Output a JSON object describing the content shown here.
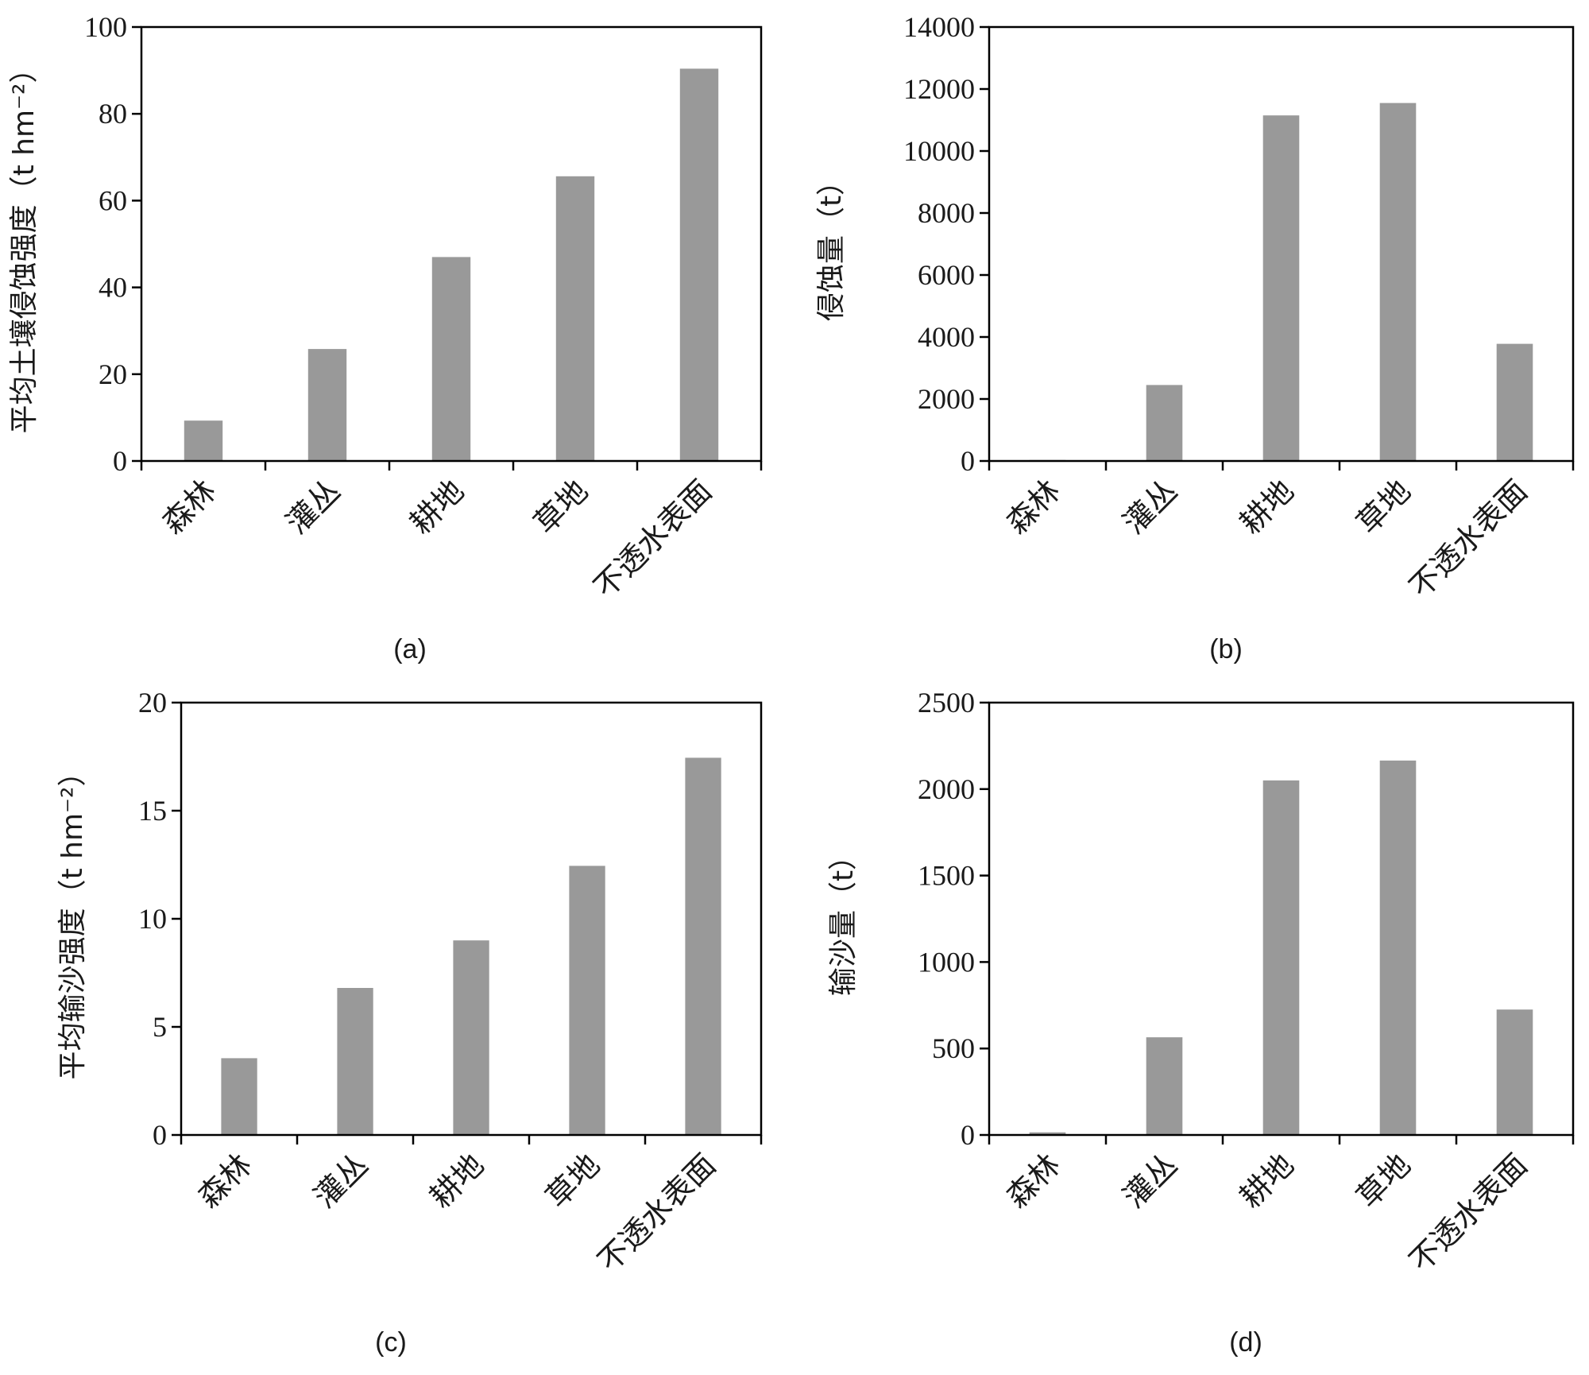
{
  "chart_data": [
    {
      "type": "bar",
      "panel_label": "(a)",
      "categories": [
        "森林",
        "灌丛",
        "耕地",
        "草地",
        "不透水表面"
      ],
      "values": [
        9.3,
        25.8,
        47.0,
        65.6,
        90.4
      ],
      "ylabel": "平均土壤侵蚀强度（t hm⁻²）",
      "ylim": [
        0,
        100
      ],
      "yticks": [
        "0",
        "20",
        "40",
        "60",
        "80",
        "100"
      ],
      "bar_color": "#999999"
    },
    {
      "type": "bar",
      "panel_label": "(b)",
      "categories": [
        "森林",
        "灌丛",
        "耕地",
        "草地",
        "不透水表面"
      ],
      "values": [
        30,
        2450,
        11150,
        11550,
        3780
      ],
      "ylabel": "侵蚀量（t）",
      "ylim": [
        0,
        14000
      ],
      "yticks": [
        "0",
        "2000",
        "4000",
        "6000",
        "8000",
        "10000",
        "12000",
        "14000"
      ],
      "bar_color": "#999999"
    },
    {
      "type": "bar",
      "panel_label": "(c)",
      "categories": [
        "森林",
        "灌丛",
        "耕地",
        "草地",
        "不透水表面"
      ],
      "values": [
        3.55,
        6.8,
        9.0,
        12.45,
        17.45
      ],
      "ylabel": "平均输沙强度（t hm⁻²）",
      "ylim": [
        0,
        20
      ],
      "yticks": [
        "0",
        "5",
        "10",
        "15",
        "20"
      ],
      "bar_color": "#999999"
    },
    {
      "type": "bar",
      "panel_label": "(d)",
      "categories": [
        "森林",
        "灌丛",
        "耕地",
        "草地",
        "不透水表面"
      ],
      "values": [
        15,
        565,
        2050,
        2165,
        725
      ],
      "ylabel": "输沙量（t）",
      "ylim": [
        0,
        2500
      ],
      "yticks": [
        "0",
        "500",
        "1000",
        "1500",
        "2000",
        "2500"
      ],
      "bar_color": "#999999"
    }
  ]
}
